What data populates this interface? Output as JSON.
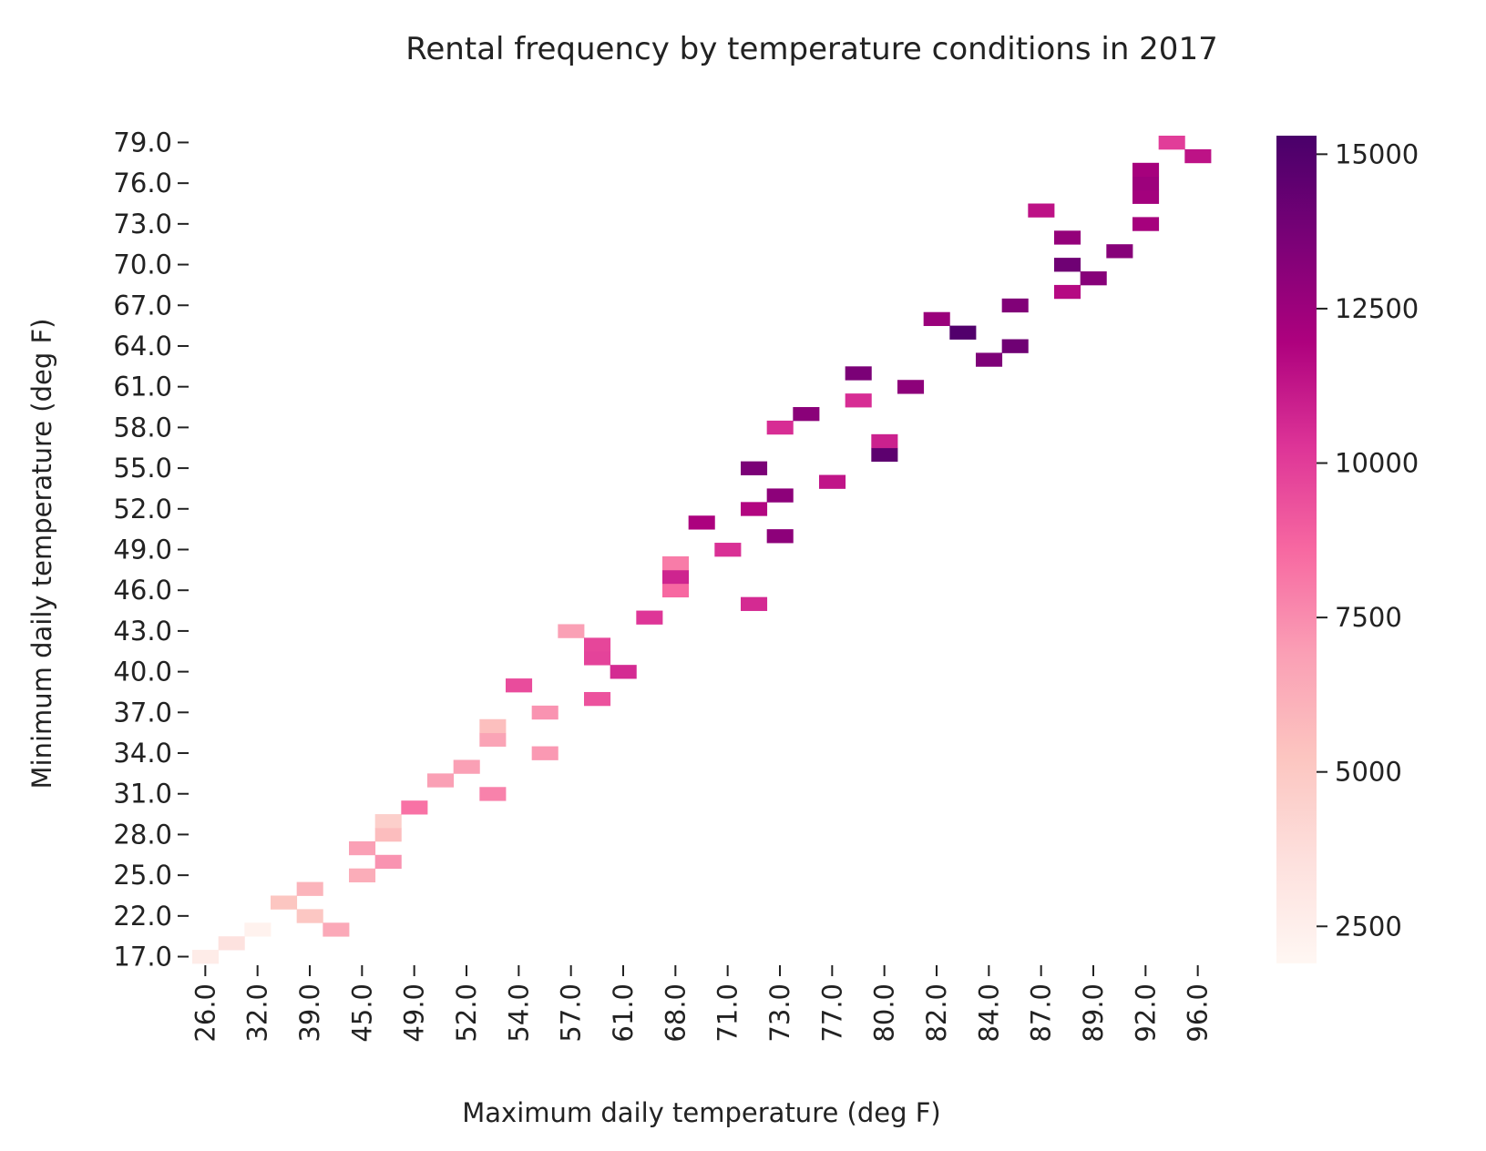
{
  "chart_data": {
    "type": "heatmap",
    "title": "Rental frequency by temperature conditions in 2017",
    "xlabel": "Maximum daily temperature (deg F)",
    "ylabel": "Minimum daily temperature (deg F)",
    "x_categories": [
      "26.0",
      "29.0",
      "32.0",
      "36.0",
      "39.0",
      "43.0",
      "45.0",
      "47.0",
      "49.0",
      "51.0",
      "52.0",
      "53.0",
      "54.0",
      "55.0",
      "57.0",
      "59.0",
      "61.0",
      "66.0",
      "68.0",
      "69.0",
      "71.0",
      "72.0",
      "73.0",
      "75.0",
      "77.0",
      "78.0",
      "80.0",
      "81.0",
      "82.0",
      "83.0",
      "84.0",
      "85.0",
      "87.0",
      "88.0",
      "89.0",
      "90.0",
      "92.0",
      "94.0",
      "96.0"
    ],
    "x_tick_labels": [
      "26.0",
      "32.0",
      "39.0",
      "45.0",
      "49.0",
      "52.0",
      "54.0",
      "57.0",
      "61.0",
      "68.0",
      "71.0",
      "73.0",
      "77.0",
      "80.0",
      "82.0",
      "84.0",
      "87.0",
      "89.0",
      "92.0",
      "96.0"
    ],
    "y_categories": [
      "17.0",
      "19.0",
      "21.0",
      "22.0",
      "23.0",
      "24.0",
      "25.0",
      "26.0",
      "27.0",
      "28.0",
      "29.0",
      "30.0",
      "31.0",
      "32.0",
      "33.0",
      "34.0",
      "35.0",
      "36.0",
      "37.0",
      "38.0",
      "39.0",
      "40.0",
      "41.0",
      "42.0",
      "43.0",
      "44.0",
      "45.0",
      "46.0",
      "47.0",
      "48.0",
      "49.0",
      "50.0",
      "51.0",
      "52.0",
      "53.0",
      "54.0",
      "55.0",
      "56.0",
      "57.0",
      "58.0",
      "59.0",
      "60.0",
      "61.0",
      "62.0",
      "63.0",
      "64.0",
      "65.0",
      "66.0",
      "67.0",
      "68.0",
      "69.0",
      "70.0",
      "71.0",
      "72.0",
      "73.0",
      "74.0",
      "75.0",
      "76.0",
      "77.0",
      "78.0",
      "79.0"
    ],
    "y_tick_labels": [
      "17.0",
      "22.0",
      "25.0",
      "28.0",
      "31.0",
      "34.0",
      "37.0",
      "40.0",
      "43.0",
      "46.0",
      "49.0",
      "52.0",
      "55.0",
      "58.0",
      "61.0",
      "64.0",
      "67.0",
      "70.0",
      "73.0",
      "76.0",
      "79.0"
    ],
    "cells": [
      {
        "x": "26.0",
        "y": "17.0",
        "value": 2700
      },
      {
        "x": "29.0",
        "y": "19.0",
        "value": 3400
      },
      {
        "x": "32.0",
        "y": "21.0",
        "value": 2300
      },
      {
        "x": "36.0",
        "y": "23.0",
        "value": 5200
      },
      {
        "x": "39.0",
        "y": "22.0",
        "value": 5100
      },
      {
        "x": "39.0",
        "y": "24.0",
        "value": 6000
      },
      {
        "x": "43.0",
        "y": "21.0",
        "value": 6500
      },
      {
        "x": "45.0",
        "y": "25.0",
        "value": 6300
      },
      {
        "x": "45.0",
        "y": "27.0",
        "value": 6900
      },
      {
        "x": "47.0",
        "y": "26.0",
        "value": 7300
      },
      {
        "x": "47.0",
        "y": "28.0",
        "value": 5600
      },
      {
        "x": "47.0",
        "y": "29.0",
        "value": 4600
      },
      {
        "x": "49.0",
        "y": "30.0",
        "value": 8300
      },
      {
        "x": "51.0",
        "y": "32.0",
        "value": 6900
      },
      {
        "x": "52.0",
        "y": "33.0",
        "value": 6900
      },
      {
        "x": "53.0",
        "y": "31.0",
        "value": 7800
      },
      {
        "x": "53.0",
        "y": "35.0",
        "value": 6700
      },
      {
        "x": "53.0",
        "y": "36.0",
        "value": 5500
      },
      {
        "x": "54.0",
        "y": "39.0",
        "value": 9500
      },
      {
        "x": "55.0",
        "y": "34.0",
        "value": 7100
      },
      {
        "x": "55.0",
        "y": "37.0",
        "value": 7300
      },
      {
        "x": "57.0",
        "y": "43.0",
        "value": 6900
      },
      {
        "x": "59.0",
        "y": "38.0",
        "value": 9300
      },
      {
        "x": "59.0",
        "y": "41.0",
        "value": 9800
      },
      {
        "x": "59.0",
        "y": "42.0",
        "value": 9700
      },
      {
        "x": "61.0",
        "y": "40.0",
        "value": 10600
      },
      {
        "x": "66.0",
        "y": "44.0",
        "value": 10200
      },
      {
        "x": "68.0",
        "y": "46.0",
        "value": 8600
      },
      {
        "x": "68.0",
        "y": "47.0",
        "value": 10800
      },
      {
        "x": "68.0",
        "y": "48.0",
        "value": 8000
      },
      {
        "x": "69.0",
        "y": "51.0",
        "value": 12000
      },
      {
        "x": "71.0",
        "y": "49.0",
        "value": 10400
      },
      {
        "x": "72.0",
        "y": "45.0",
        "value": 10600
      },
      {
        "x": "72.0",
        "y": "52.0",
        "value": 11800
      },
      {
        "x": "72.0",
        "y": "55.0",
        "value": 13600
      },
      {
        "x": "73.0",
        "y": "50.0",
        "value": 13000
      },
      {
        "x": "73.0",
        "y": "53.0",
        "value": 13000
      },
      {
        "x": "73.0",
        "y": "58.0",
        "value": 10500
      },
      {
        "x": "75.0",
        "y": "59.0",
        "value": 13100
      },
      {
        "x": "77.0",
        "y": "54.0",
        "value": 11300
      },
      {
        "x": "78.0",
        "y": "60.0",
        "value": 10500
      },
      {
        "x": "78.0",
        "y": "62.0",
        "value": 13600
      },
      {
        "x": "80.0",
        "y": "56.0",
        "value": 14600
      },
      {
        "x": "80.0",
        "y": "57.0",
        "value": 10900
      },
      {
        "x": "81.0",
        "y": "61.0",
        "value": 13000
      },
      {
        "x": "82.0",
        "y": "66.0",
        "value": 12600
      },
      {
        "x": "83.0",
        "y": "65.0",
        "value": 15000
      },
      {
        "x": "84.0",
        "y": "63.0",
        "value": 13500
      },
      {
        "x": "85.0",
        "y": "64.0",
        "value": 14000
      },
      {
        "x": "85.0",
        "y": "67.0",
        "value": 13400
      },
      {
        "x": "87.0",
        "y": "74.0",
        "value": 11400
      },
      {
        "x": "88.0",
        "y": "68.0",
        "value": 11700
      },
      {
        "x": "88.0",
        "y": "70.0",
        "value": 14000
      },
      {
        "x": "88.0",
        "y": "72.0",
        "value": 12800
      },
      {
        "x": "89.0",
        "y": "69.0",
        "value": 13200
      },
      {
        "x": "90.0",
        "y": "71.0",
        "value": 13200
      },
      {
        "x": "92.0",
        "y": "73.0",
        "value": 12200
      },
      {
        "x": "92.0",
        "y": "75.0",
        "value": 12300
      },
      {
        "x": "92.0",
        "y": "76.0",
        "value": 12500
      },
      {
        "x": "92.0",
        "y": "77.0",
        "value": 12200
      },
      {
        "x": "94.0",
        "y": "79.0",
        "value": 10000
      },
      {
        "x": "96.0",
        "y": "78.0",
        "value": 11400
      }
    ],
    "colorbar": {
      "min": 1900,
      "max": 15300,
      "ticks": [
        2500,
        5000,
        7500,
        10000,
        12500,
        15000
      ],
      "tick_labels": [
        "2500",
        "5000",
        "7500",
        "10000",
        "12500",
        "15000"
      ],
      "colormap": "RdPu",
      "color_stops": [
        "#fff7f3",
        "#fde0dd",
        "#fcc5c0",
        "#fa9fb5",
        "#f768a1",
        "#dd3497",
        "#ae017e",
        "#7a0177",
        "#49006a"
      ]
    },
    "grid": false,
    "legend": "colorbar-right"
  }
}
